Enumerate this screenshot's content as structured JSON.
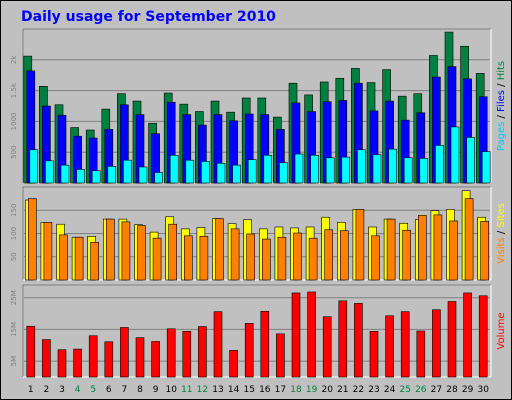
{
  "chart_data": {
    "type": "bar",
    "title": "Daily usage for September 2010",
    "days": [
      "1",
      "2",
      "3",
      "4",
      "5",
      "6",
      "7",
      "8",
      "9",
      "10",
      "11",
      "12",
      "13",
      "14",
      "15",
      "16",
      "17",
      "18",
      "19",
      "20",
      "21",
      "22",
      "23",
      "24",
      "25",
      "26",
      "27",
      "28",
      "29",
      "30"
    ],
    "weekend_days": [
      "4",
      "5",
      "11",
      "12",
      "18",
      "19",
      "25",
      "26"
    ],
    "panels": [
      {
        "id": "hits",
        "ylim": [
          0,
          2500
        ],
        "ytick_values": [
          500,
          1000,
          1500,
          2000
        ],
        "ytick_labels": [
          "500",
          "1000",
          "1.5k",
          "2k"
        ],
        "side_label": [
          {
            "text": "Pages",
            "color": "#00c8f8"
          },
          {
            "text": " / ",
            "color": "#000000"
          },
          {
            "text": "Files",
            "color": "#0000ff"
          },
          {
            "text": " / ",
            "color": "#000000"
          },
          {
            "text": "Hits",
            "color": "#008040"
          }
        ],
        "series": [
          {
            "name": "Hits",
            "color": "#008040",
            "values": [
              2060,
              1570,
              1270,
              900,
              860,
              1200,
              1450,
              1330,
              970,
              1460,
              1280,
              1160,
              1330,
              1150,
              1380,
              1380,
              1070,
              1620,
              1430,
              1640,
              1700,
              1860,
              1630,
              1840,
              1410,
              1450,
              2070,
              2450,
              2220,
              1780
            ]
          },
          {
            "name": "Files",
            "color": "#0000ff",
            "values": [
              1820,
              1250,
              1100,
              760,
              730,
              870,
              1270,
              1110,
              800,
              1310,
              1110,
              940,
              1110,
              1010,
              1120,
              1110,
              870,
              1300,
              1160,
              1320,
              1340,
              1620,
              1170,
              1330,
              1020,
              1140,
              1720,
              1890,
              1690,
              1400
            ]
          },
          {
            "name": "Pages",
            "color": "#00ffff",
            "values": [
              540,
              360,
              290,
              220,
              200,
              270,
              370,
              260,
              170,
              450,
              370,
              350,
              320,
              290,
              380,
              450,
              330,
              470,
              450,
              410,
              420,
              540,
              460,
              550,
              410,
              400,
              610,
              910,
              740,
              510
            ]
          }
        ]
      },
      {
        "id": "visits",
        "ylim": [
          0,
          200
        ],
        "ytick_values": [
          50,
          100,
          150
        ],
        "ytick_labels": [
          "50",
          "100",
          "150"
        ],
        "side_label": [
          {
            "text": "Visits",
            "color": "#ff8000"
          },
          {
            "text": " / ",
            "color": "#000000"
          },
          {
            "text": "Sites",
            "color": "#ffff00"
          }
        ],
        "series": [
          {
            "name": "Sites",
            "color": "#ffff00",
            "values": [
              172,
              124,
              120,
              92,
              94,
              131,
              131,
              119,
              103,
              136,
              110,
              113,
              132,
              121,
              130,
              110,
              114,
              112,
              114,
              135,
              124,
              152,
              114,
              131,
              122,
              130,
              149,
              152,
              192,
              135
            ]
          },
          {
            "name": "Visits",
            "color": "#ff8000",
            "values": [
              175,
              124,
              97,
              92,
              81,
              131,
              125,
              117,
              90,
              120,
              95,
              94,
              132,
              110,
              99,
              88,
              92,
              101,
              90,
              108,
              106,
              152,
              95,
              131,
              107,
              139,
              140,
              127,
              175,
              126
            ]
          }
        ]
      },
      {
        "id": "volume",
        "ylim": [
          0,
          2900
        ],
        "ytick_values": [
          500,
          1500,
          2500
        ],
        "ytick_labels": [
          "5M",
          "15M",
          "25M"
        ],
        "side_label": [
          {
            "text": "Volume",
            "color": "#ff0000"
          }
        ],
        "series": [
          {
            "name": "Volume",
            "color": "#ff0000",
            "values": [
              1600,
              1180,
              860,
              880,
              1300,
              1110,
              1560,
              1240,
              1120,
              1520,
              1440,
              1590,
              2060,
              840,
              1690,
              2070,
              1360,
              2650,
              2680,
              1900,
              2400,
              2320,
              1440,
              1930,
              2060,
              1450,
              2120,
              2380,
              2650,
              2560
            ]
          }
        ]
      }
    ]
  }
}
